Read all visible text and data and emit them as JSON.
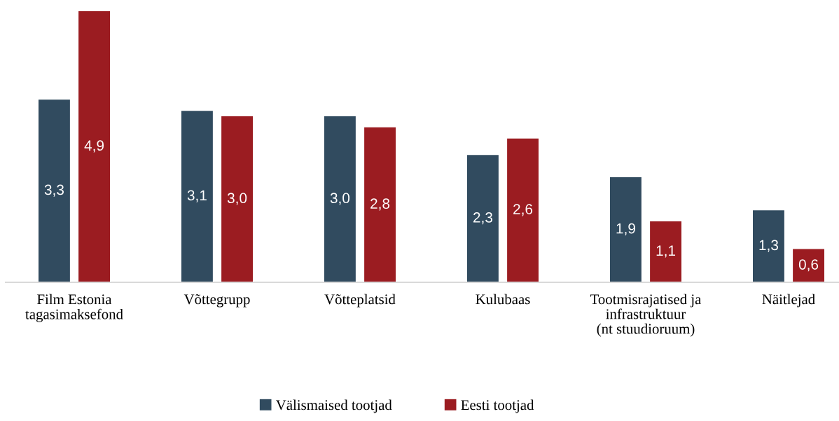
{
  "chart_data": {
    "type": "bar",
    "categories": [
      "Film Estonia\ntagasimaksefond",
      "Võttegrupp",
      "Võtteplatsid",
      "Kulubaas",
      "Tootmisrajatised ja\ninfrastruktuur\n(nt stuudioruum)",
      "Näitlejad"
    ],
    "series": [
      {
        "name": "Välismaised tootjad",
        "color": "#314b5f",
        "values": [
          3.3,
          3.1,
          3.0,
          2.3,
          1.9,
          1.3
        ],
        "value_labels": [
          "3,3",
          "3,1",
          "3,0",
          "2,3",
          "1,9",
          "1,3"
        ]
      },
      {
        "name": "Eesti tootjad",
        "color": "#9b1c21",
        "values": [
          4.9,
          3.0,
          2.8,
          2.6,
          1.1,
          0.6
        ],
        "value_labels": [
          "4,9",
          "3,0",
          "2,8",
          "2,6",
          "1,1",
          "0,6"
        ]
      }
    ],
    "legend": "bottom",
    "grid": false,
    "tick_labels": "x"
  }
}
